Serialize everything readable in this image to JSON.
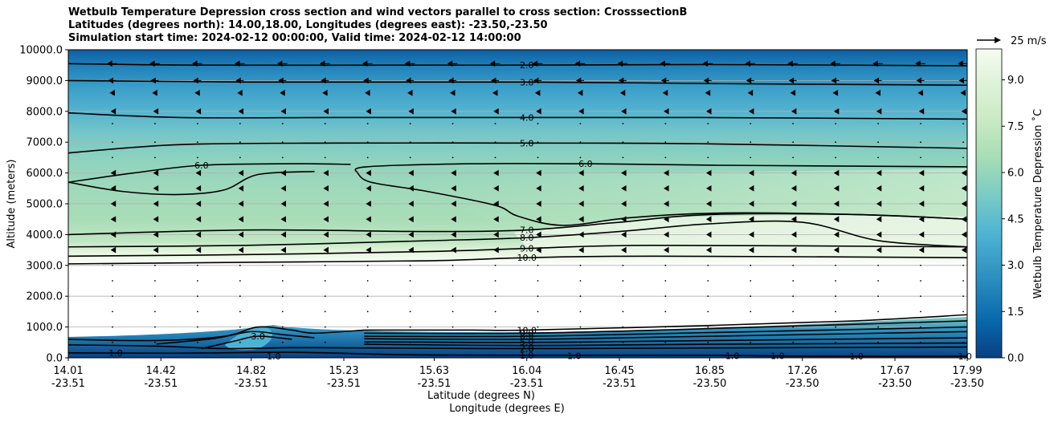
{
  "chart_data": {
    "type": "contour",
    "title_lines": [
      "Wetbulb Temperature Depression cross section and wind vectors parallel to cross section: CrosssectionB",
      "Latitudes (degrees north): 14.00,18.00, Longitudes (degrees east): -23.50,-23.50",
      "Simulation start time: 2024-02-12 00:00:00, Valid time: 2024-02-12 14:00:00"
    ],
    "ylabel": "Altitude (meters)",
    "xlabel_lat": "Latitude (degrees N)",
    "xlabel_lon": "Longitude (degrees E)",
    "ylim": [
      0,
      10000
    ],
    "yticks": [
      "0.0",
      "1000.0",
      "2000.0",
      "3000.0",
      "4000.0",
      "5000.0",
      "6000.0",
      "7000.0",
      "8000.0",
      "9000.0",
      "10000.0"
    ],
    "xlim": [
      14.01,
      17.99
    ],
    "xticks": [
      {
        "lat": "14.01",
        "lon": "-23.51",
        "value": 14.01
      },
      {
        "lat": "14.42",
        "lon": "-23.51",
        "value": 14.42
      },
      {
        "lat": "14.82",
        "lon": "-23.51",
        "value": 14.82
      },
      {
        "lat": "15.23",
        "lon": "-23.51",
        "value": 15.23
      },
      {
        "lat": "15.63",
        "lon": "-23.51",
        "value": 15.63
      },
      {
        "lat": "16.04",
        "lon": "-23.51",
        "value": 16.04
      },
      {
        "lat": "16.45",
        "lon": "-23.51",
        "value": 16.45
      },
      {
        "lat": "16.85",
        "lon": "-23.50",
        "value": 16.85
      },
      {
        "lat": "17.26",
        "lon": "-23.50",
        "value": 17.26
      },
      {
        "lat": "17.67",
        "lon": "-23.50",
        "value": 17.67
      },
      {
        "lat": "17.99",
        "lon": "-23.50",
        "value": 17.99
      }
    ],
    "colorbar": {
      "label": "Wetbulb Temperature Depression ˚C",
      "min": 0.0,
      "max": 10.0,
      "ticks": [
        "0.0",
        "1.5",
        "3.0",
        "4.5",
        "6.0",
        "7.5",
        "9.0"
      ],
      "colors": [
        "#084081",
        "#0868ac",
        "#2b8cbe",
        "#4eb3d3",
        "#7bccc4",
        "#a8ddb5",
        "#ccebc5",
        "#e0f3db",
        "#f7fcf0"
      ]
    },
    "quiver_key": "25 m/s",
    "contour_lines": [
      {
        "level": 2.0,
        "label": "2.0",
        "points": [
          [
            14.01,
            9550
          ],
          [
            14.6,
            9500
          ],
          [
            15.6,
            9500
          ],
          [
            16.04,
            9500
          ],
          [
            16.8,
            9520
          ],
          [
            17.99,
            9480
          ]
        ]
      },
      {
        "level": 3.0,
        "label": "3.0",
        "points": [
          [
            14.01,
            9000
          ],
          [
            14.8,
            8950
          ],
          [
            16.04,
            8950
          ],
          [
            16.9,
            8900
          ],
          [
            17.99,
            8850
          ]
        ]
      },
      {
        "level": 4.0,
        "label": "4.0",
        "points": [
          [
            14.01,
            7950
          ],
          [
            14.5,
            7800
          ],
          [
            15.2,
            7800
          ],
          [
            16.04,
            7800
          ],
          [
            16.8,
            7800
          ],
          [
            17.99,
            7750
          ]
        ]
      },
      {
        "level": 5.0,
        "label": "5.0",
        "points": [
          [
            14.01,
            6650
          ],
          [
            14.5,
            6920
          ],
          [
            15.2,
            6970
          ],
          [
            16.04,
            6970
          ],
          [
            16.8,
            6950
          ],
          [
            17.99,
            6800
          ]
        ]
      },
      {
        "level": 6.0,
        "label": "6.0",
        "points": [
          [
            14.01,
            5700
          ],
          [
            14.3,
            6000
          ],
          [
            14.6,
            6250
          ],
          [
            15.0,
            6300
          ],
          [
            15.26,
            6280
          ]
        ]
      },
      {
        "level": 6.0,
        "label": "",
        "points": [
          [
            14.01,
            5700
          ],
          [
            14.25,
            5400
          ],
          [
            14.5,
            5300
          ],
          [
            14.7,
            5450
          ],
          [
            14.85,
            5950
          ],
          [
            15.1,
            6050
          ]
        ]
      },
      {
        "level": 6.0,
        "label": "6.0",
        "points": [
          [
            15.29,
            6000
          ],
          [
            15.33,
            6200
          ],
          [
            15.8,
            6300
          ],
          [
            16.3,
            6300
          ],
          [
            16.9,
            6250
          ],
          [
            17.99,
            6200
          ]
        ]
      },
      {
        "level": 6.0,
        "label": "",
        "points": [
          [
            15.29,
            6000
          ],
          [
            15.35,
            5700
          ],
          [
            15.6,
            5400
          ],
          [
            15.9,
            4950
          ],
          [
            16.0,
            4600
          ],
          [
            16.2,
            4300
          ],
          [
            16.5,
            4550
          ],
          [
            16.9,
            4700
          ],
          [
            17.5,
            4650
          ],
          [
            17.99,
            4500
          ]
        ]
      },
      {
        "level": 7.0,
        "label": "7.0",
        "points": [
          [
            14.01,
            4000
          ],
          [
            14.8,
            4150
          ],
          [
            15.6,
            4100
          ],
          [
            16.04,
            4150
          ],
          [
            16.45,
            4400
          ],
          [
            16.85,
            4650
          ],
          [
            17.5,
            4650
          ],
          [
            17.99,
            4500
          ]
        ]
      },
      {
        "level": 8.0,
        "label": "8.0",
        "points": [
          [
            14.01,
            3600
          ],
          [
            14.8,
            3650
          ],
          [
            15.6,
            3800
          ],
          [
            16.04,
            3900
          ],
          [
            16.45,
            4100
          ],
          [
            16.85,
            4350
          ],
          [
            17.26,
            4400
          ],
          [
            17.6,
            3800
          ],
          [
            17.99,
            3600
          ]
        ]
      },
      {
        "level": 9.0,
        "label": "9.0",
        "points": [
          [
            14.01,
            3300
          ],
          [
            14.8,
            3350
          ],
          [
            15.6,
            3450
          ],
          [
            16.04,
            3550
          ],
          [
            16.6,
            3650
          ],
          [
            17.99,
            3600
          ]
        ]
      },
      {
        "level": 10.0,
        "label": "10.0",
        "points": [
          [
            14.01,
            3050
          ],
          [
            14.8,
            3100
          ],
          [
            15.6,
            3150
          ],
          [
            16.04,
            3250
          ],
          [
            16.6,
            3300
          ],
          [
            17.99,
            3250
          ]
        ]
      },
      {
        "level": 10.0,
        "label": "10.0",
        "points": [
          [
            15.32,
            900
          ],
          [
            15.8,
            900
          ],
          [
            16.04,
            900
          ],
          [
            16.85,
            1050
          ],
          [
            17.5,
            1200
          ],
          [
            17.99,
            1400
          ]
        ]
      },
      {
        "level": 9.0,
        "label": "",
        "points": [
          [
            15.32,
            800
          ],
          [
            16.04,
            800
          ],
          [
            16.85,
            950
          ],
          [
            17.99,
            1200
          ]
        ]
      },
      {
        "level": 8.0,
        "label": "",
        "points": [
          [
            15.32,
            700
          ],
          [
            16.04,
            700
          ],
          [
            16.85,
            820
          ],
          [
            17.99,
            1000
          ]
        ]
      },
      {
        "level": 7.0,
        "label": "",
        "points": [
          [
            15.32,
            620
          ],
          [
            16.04,
            600
          ],
          [
            16.85,
            700
          ],
          [
            17.99,
            850
          ]
        ]
      },
      {
        "level": 5.0,
        "label": "",
        "points": [
          [
            15.32,
            520
          ],
          [
            16.04,
            500
          ],
          [
            16.85,
            560
          ],
          [
            17.99,
            650
          ]
        ]
      },
      {
        "level": 3.0,
        "label": "",
        "points": [
          [
            15.32,
            440
          ],
          [
            16.04,
            400
          ],
          [
            16.85,
            440
          ],
          [
            17.99,
            480
          ]
        ]
      },
      {
        "level": 2.0,
        "label": "2.0",
        "points": [
          [
            14.01,
            420
          ],
          [
            14.4,
            380
          ],
          [
            14.7,
            300
          ],
          [
            15.0,
            330
          ],
          [
            15.32,
            320
          ],
          [
            16.04,
            300
          ],
          [
            16.85,
            320
          ],
          [
            17.99,
            350
          ]
        ]
      },
      {
        "level": 1.0,
        "label": "1.0",
        "points": [
          [
            14.01,
            160
          ],
          [
            14.5,
            150
          ],
          [
            15.0,
            180
          ],
          [
            15.5,
            100
          ],
          [
            16.04,
            80
          ],
          [
            16.85,
            80
          ],
          [
            17.3,
            50
          ],
          [
            17.99,
            50
          ]
        ]
      },
      {
        "level": 8.0,
        "label": "",
        "points": [
          [
            14.01,
            600
          ],
          [
            14.4,
            560
          ],
          [
            14.7,
            700
          ],
          [
            14.85,
            1000
          ],
          [
            15.0,
            900
          ],
          [
            15.1,
            800
          ],
          [
            15.32,
            900
          ]
        ]
      },
      {
        "level": 5.0,
        "label": "",
        "points": [
          [
            14.4,
            450
          ],
          [
            14.65,
            620
          ],
          [
            14.82,
            850
          ],
          [
            14.95,
            760
          ],
          [
            15.1,
            650
          ]
        ]
      },
      {
        "level": 3.0,
        "label": "3.0",
        "points": [
          [
            14.6,
            300
          ],
          [
            14.75,
            550
          ],
          [
            14.85,
            700
          ],
          [
            15.0,
            600
          ]
        ]
      }
    ],
    "contour_labels_extra": [
      {
        "text": "1.0",
        "x": 14.22,
        "y": 150
      },
      {
        "text": "1.0",
        "x": 16.25,
        "y": 60
      },
      {
        "text": "1.0",
        "x": 16.95,
        "y": 60
      },
      {
        "text": "1.0",
        "x": 17.15,
        "y": 60
      },
      {
        "text": "1.0",
        "x": 17.5,
        "y": 50
      },
      {
        "text": "1.0",
        "x": 17.98,
        "y": 50
      },
      {
        "text": "1.0",
        "x": 14.92,
        "y": 50
      },
      {
        "text": "2.0",
        "x": 16.04,
        "y": 300
      },
      {
        "text": "5.0",
        "x": 16.04,
        "y": 520
      },
      {
        "text": "8.0",
        "x": 16.04,
        "y": 720
      },
      {
        "text": "9.0",
        "x": 16.04,
        "y": 820
      }
    ],
    "wind_rows": [
      {
        "altitude": 9550,
        "speed": 9
      },
      {
        "altitude": 9000,
        "speed": 7
      },
      {
        "altitude": 8600,
        "speed": 4
      },
      {
        "altitude": 8000,
        "speed": 2
      },
      {
        "altitude": 7600,
        "speed": 1
      },
      {
        "altitude": 7000,
        "speed": 1
      },
      {
        "altitude": 6500,
        "speed": 1
      },
      {
        "altitude": 6000,
        "speed": 2
      },
      {
        "altitude": 5500,
        "speed": 2
      },
      {
        "altitude": 5000,
        "speed": 2
      },
      {
        "altitude": 4500,
        "speed": 2
      },
      {
        "altitude": 4000,
        "speed": 2
      },
      {
        "altitude": 3500,
        "speed": 2
      },
      {
        "altitude": 3000,
        "speed": 1
      },
      {
        "altitude": 2500,
        "speed": 1
      },
      {
        "altitude": 2000,
        "speed": 1
      },
      {
        "altitude": 1500,
        "speed": 1
      },
      {
        "altitude": 1000,
        "speed": 1
      },
      {
        "altitude": 500,
        "speed": 1
      }
    ]
  }
}
